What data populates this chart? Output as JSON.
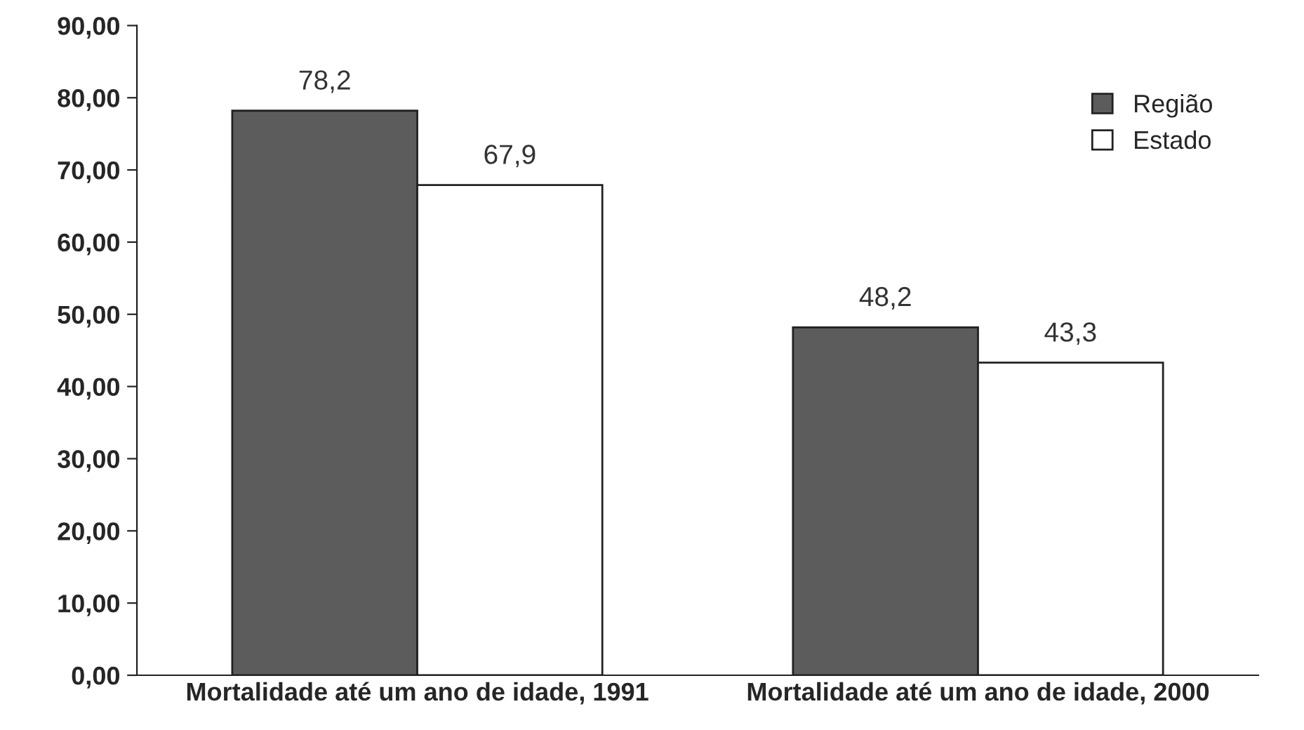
{
  "chart_data": {
    "type": "bar",
    "categories": [
      "Mortalidade até um ano de idade, 1991",
      "Mortalidade até um ano de idade, 2000"
    ],
    "series": [
      {
        "name": "Região",
        "color": "#5c5c5c",
        "values": [
          78.2,
          48.2
        ],
        "value_labels": [
          "78,2",
          "48,2"
        ]
      },
      {
        "name": "Estado",
        "color": "#ffffff",
        "values": [
          67.9,
          43.3
        ],
        "value_labels": [
          "67,9",
          "43,3"
        ]
      }
    ],
    "ylim": [
      0,
      90
    ],
    "yticks": [
      {
        "value": 0,
        "label": "0,00"
      },
      {
        "value": 10,
        "label": "10,00"
      },
      {
        "value": 20,
        "label": "20,00"
      },
      {
        "value": 30,
        "label": "30,00"
      },
      {
        "value": 40,
        "label": "40,00"
      },
      {
        "value": 50,
        "label": "50,00"
      },
      {
        "value": 60,
        "label": "60,00"
      },
      {
        "value": 70,
        "label": "70,00"
      },
      {
        "value": 80,
        "label": "80,00"
      },
      {
        "value": 90,
        "label": "90,00"
      }
    ],
    "grid": false,
    "legend": "top right"
  }
}
